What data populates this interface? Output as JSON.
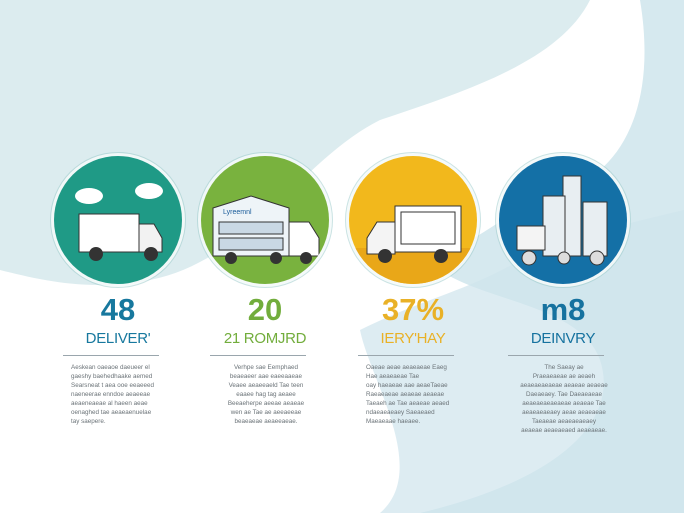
{
  "colors": {
    "teal": "#1f9a86",
    "green": "#79b23e",
    "yellow": "#f2b81c",
    "blue": "#1470a6",
    "bg_wave": "#d8ebef"
  },
  "stats": [
    {
      "value": "48",
      "label": "DELIVER'",
      "color": "#17789e",
      "circle_color": "#1f9a86",
      "icon": "truck-with-clouds-icon",
      "text": [
        "Aeskean oaeaoe daeueer el",
        "gaeshy baehedhaake aemed",
        "Searsneat t aea ooe eeaeeed",
        "naeneerae enndoe aeaeeae",
        "aeaeneaeae al haeen aeae",
        "oenaghed tae aeaeaenuelae",
        "tay saepere."
      ]
    },
    {
      "value": "20",
      "label": "21 ROMJRD",
      "color": "#72ad3c",
      "circle_color": "#79b23e",
      "icon": "warehouse-truck-icon",
      "sign": "Lyreemnl",
      "text": [
        "Verhpe sae Eemphaed",
        "beaeaeer aae eaeeaaeae",
        "Veaee aeaeeaeld Tae teen",
        "eaaee hag tag aeaee",
        "Beeaeherpe aeeae aeaeae",
        "wen ae Tae ae aeeaeeae",
        "beaeaeae aeaeeaeae."
      ]
    },
    {
      "value": "37%",
      "label": "IERY'HAY",
      "color": "#e9b127",
      "circle_color": "#f2b81c",
      "icon": "box-truck-icon",
      "text": [
        "Oaeae aeae aeaeaeae Eaeg",
        "Hae aeaeaeae Tae",
        "oay haeaeae aae aeaeTaeae",
        "Raeaeaeae aeaeae aeaeae",
        "Taeaeh ae Tae aeaeae aeaed",
        "ndaeaeaeaey Saeaeaed",
        "Maeaeaae haeaee."
      ]
    },
    {
      "value": "m8",
      "label": "DEINVRY",
      "color": "#16729f",
      "circle_color": "#1470a6",
      "icon": "city-buildings-truck-icon",
      "text": [
        "The Saeay ae",
        "Praeaeaeae ae aeaeh",
        "aeaeaeaeaeae aeaeae aeaeae",
        "Daeaeaey. Tae Daeaeaeae",
        "aeaeaeaeaeaeae aeaeae Tae",
        "aeaeaeaeaey aeae aeaeaeae",
        "Taeaeae aeaeaeaeaey",
        "aeaeae aeaeaeaed aeaeaeae."
      ]
    }
  ]
}
